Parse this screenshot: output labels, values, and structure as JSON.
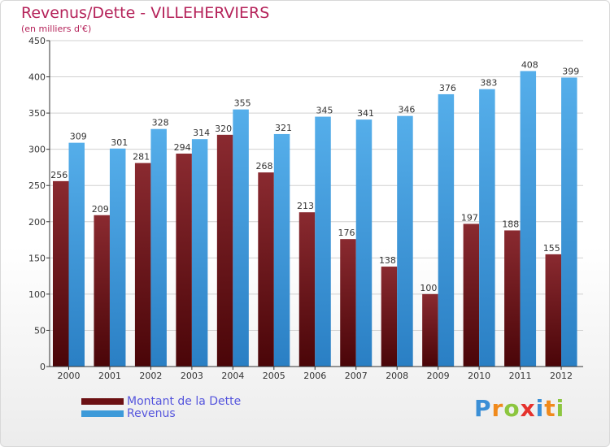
{
  "title": "Revenus/Dette - VILLEHERVIERS",
  "subtitle": "(en milliers d'€)",
  "legend": [
    {
      "label": "Montant de la Dette",
      "color": "#6b0f12"
    },
    {
      "label": "Revenus",
      "color": "#3d9ad9"
    }
  ],
  "logo": {
    "text": "Proxiti"
  },
  "colors": {
    "dette_top": "#8a2a30",
    "dette_bottom": "#4a0508",
    "revenus_top": "#55aeea",
    "revenus_bottom": "#2a7fc4",
    "axis": "#333333",
    "grid": "#d0d0d0"
  },
  "chart_data": {
    "type": "bar",
    "title": "Revenus/Dette - VILLEHERVIERS",
    "ylabel": "(en milliers d'€)",
    "xlabel": "",
    "categories": [
      "2000",
      "2001",
      "2002",
      "2003",
      "2004",
      "2005",
      "2006",
      "2007",
      "2008",
      "2009",
      "2010",
      "2011",
      "2012"
    ],
    "series": [
      {
        "name": "Montant de la Dette",
        "values": [
          256,
          209,
          281,
          294,
          320,
          268,
          213,
          176,
          138,
          100,
          197,
          188,
          155
        ]
      },
      {
        "name": "Revenus",
        "values": [
          309,
          301,
          328,
          314,
          355,
          321,
          345,
          341,
          346,
          376,
          383,
          408,
          399
        ]
      }
    ],
    "ylim": [
      0,
      450
    ],
    "yticks": [
      0,
      50,
      100,
      150,
      200,
      250,
      300,
      350,
      400,
      450
    ],
    "grid": true,
    "legend_position": "bottom-left"
  }
}
